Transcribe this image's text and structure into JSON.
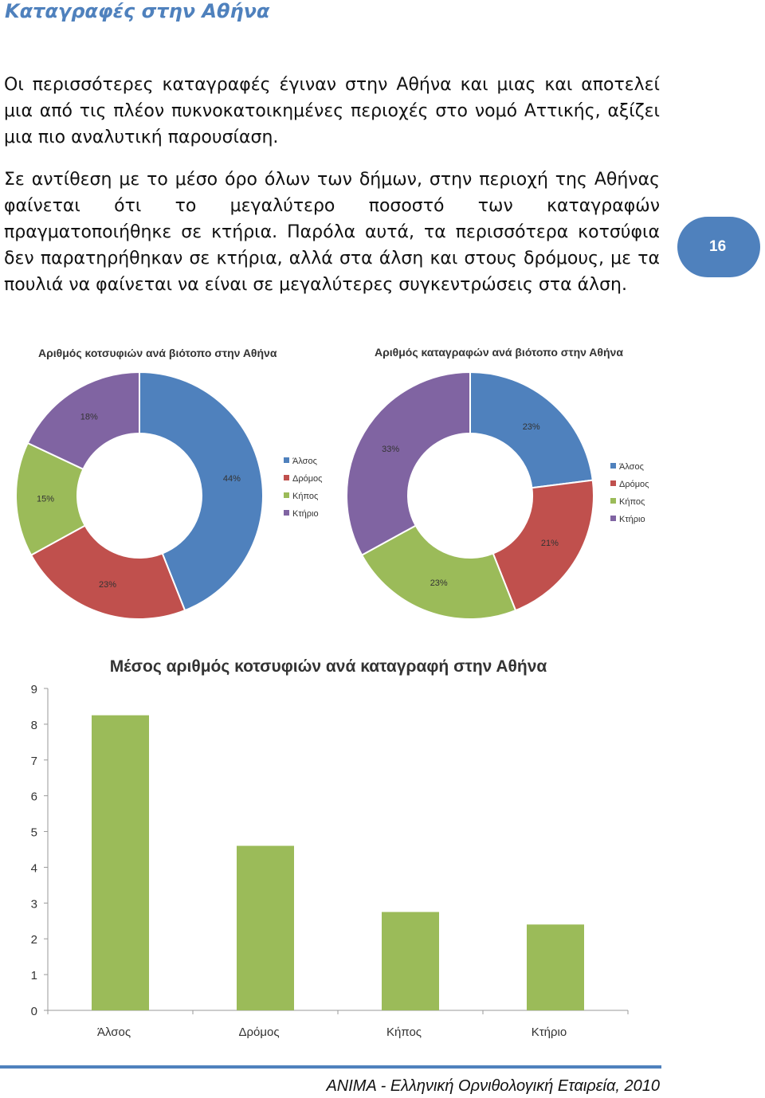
{
  "page": {
    "title": "Καταγραφές στην Αθήνα",
    "paragraphs": [
      "Οι περισσότερες καταγραφές έγιναν στην Αθήνα και μιας και αποτελεί μια από τις πλέον πυκνοκατοικημένες περιοχές στο νομό Αττικής, αξίζει μια πιο αναλυτική παρουσίαση.",
      "Σε αντίθεση με το μέσο όρο όλων των δήμων, στην περιοχή της Αθήνας φαίνεται ότι το μεγαλύτερο ποσοστό των καταγραφών πραγματοποιήθηκε σε κτήρια. Παρόλα αυτά, τα περισσότερα κοτσύφια δεν παρατηρήθηκαν σε κτήρια, αλλά στα άλση και στους δρόμους, με τα πουλιά να φαίνεται να είναι σε μεγαλύτερες συγκεντρώσεις στα άλση."
    ],
    "page_number": "16",
    "footer": "ANIMA - Ελληνική Ορνιθολογική Εταιρεία, 2010"
  },
  "colors": {
    "blue": "#4f81bd",
    "red": "#c0504d",
    "green": "#9bbb59",
    "purple": "#8064a2",
    "bar": "#9bbb59"
  },
  "chart_data": [
    {
      "type": "pie",
      "title": "Αριθμός κοτσυφιών ανά βιότοπο στην Αθήνα",
      "categories": [
        "Άλσος",
        "Δρόμος",
        "Κήπος",
        "Κτήριο"
      ],
      "values": [
        44,
        23,
        15,
        18
      ],
      "value_labels": [
        "44%",
        "23%",
        "15%",
        "18%"
      ],
      "legend_position": "right"
    },
    {
      "type": "pie",
      "title": "Αριθμός καταγραφών ανά βιότοπο στην Αθήνα",
      "categories": [
        "Άλσος",
        "Δρόμος",
        "Κήπος",
        "Κτήριο"
      ],
      "values": [
        23,
        21,
        23,
        33
      ],
      "value_labels": [
        "23%",
        "21%",
        "23%",
        "33%"
      ],
      "legend_position": "right"
    },
    {
      "type": "bar",
      "title": "Μέσος αριθμός κοτσυφιών  ανά καταγραφή στην Αθήνα",
      "categories": [
        "Άλσος",
        "Δρόμος",
        "Κήπος",
        "Κτήριο"
      ],
      "values": [
        8.25,
        4.6,
        2.75,
        2.4
      ],
      "ylim": [
        0,
        9
      ],
      "yticks": [
        "0",
        "1",
        "2",
        "3",
        "4",
        "5",
        "6",
        "7",
        "8",
        "9"
      ],
      "grid": false,
      "legend": false
    }
  ]
}
